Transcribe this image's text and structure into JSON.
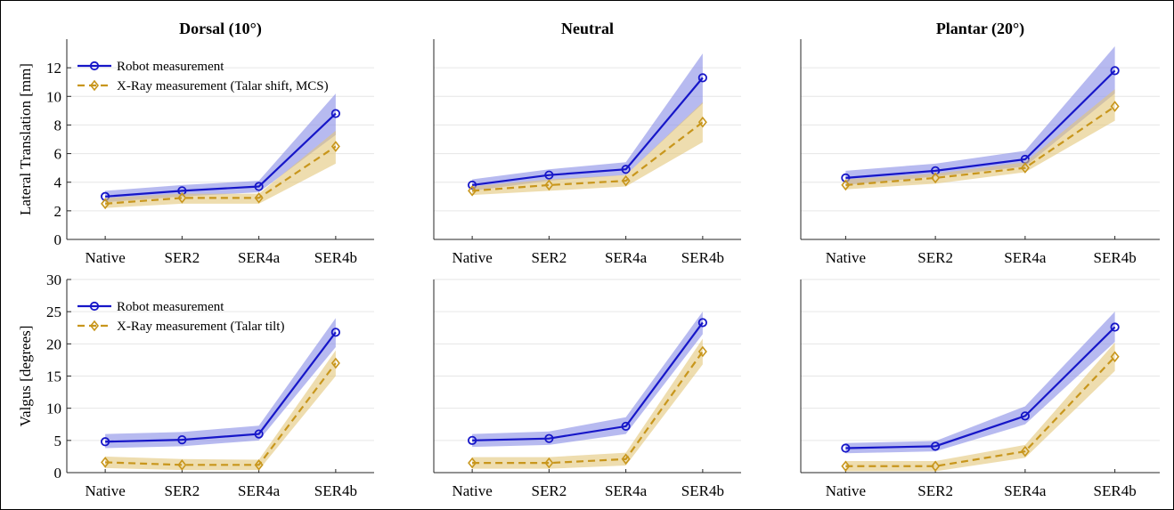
{
  "colors": {
    "robot": "#1616c8",
    "robot_band": "#8a90e6",
    "xray": "#c8961c",
    "xray_band": "#e2c77a",
    "grid": "#e6e6e6",
    "axis": "#262626"
  },
  "chart_data": [
    {
      "type": "line",
      "title": "Dorsal (10°)",
      "ylabel": "Lateral Translation [mm]",
      "categories": [
        "Native",
        "SER2",
        "SER4a",
        "SER4b"
      ],
      "ylim": [
        0,
        14
      ],
      "yticks": [
        0,
        2,
        4,
        6,
        8,
        10,
        12
      ],
      "grid": true,
      "legend": "top-left",
      "series": [
        {
          "name": "Robot measurement",
          "marker": "circle",
          "line": "solid",
          "values": [
            3.0,
            3.4,
            3.7,
            8.8
          ],
          "band_low": [
            2.6,
            3.0,
            3.3,
            7.3
          ],
          "band_high": [
            3.4,
            3.8,
            4.1,
            10.2
          ]
        },
        {
          "name": "X-Ray measurement (Talar shift, MCS)",
          "marker": "diamond",
          "line": "dashed",
          "values": [
            2.5,
            2.9,
            2.9,
            6.5
          ],
          "band_low": [
            2.2,
            2.5,
            2.5,
            5.3
          ],
          "band_high": [
            2.9,
            3.2,
            3.2,
            7.6
          ]
        }
      ]
    },
    {
      "type": "line",
      "title": "Neutral",
      "ylabel": "",
      "categories": [
        "Native",
        "SER2",
        "SER4a",
        "SER4b"
      ],
      "ylim": [
        0,
        14
      ],
      "yticks": [
        0,
        2,
        4,
        6,
        8,
        10,
        12
      ],
      "grid": true,
      "series": [
        {
          "marker": "circle",
          "line": "solid",
          "values": [
            3.8,
            4.5,
            4.9,
            11.3
          ],
          "band_low": [
            3.4,
            4.1,
            4.5,
            9.5
          ],
          "band_high": [
            4.2,
            4.9,
            5.4,
            13.0
          ]
        },
        {
          "marker": "diamond",
          "line": "dashed",
          "values": [
            3.4,
            3.8,
            4.1,
            8.2
          ],
          "band_low": [
            3.1,
            3.4,
            3.7,
            6.8
          ],
          "band_high": [
            3.7,
            4.2,
            4.5,
            9.6
          ]
        }
      ]
    },
    {
      "type": "line",
      "title": "Plantar (20°)",
      "ylabel": "",
      "categories": [
        "Native",
        "SER2",
        "SER4a",
        "SER4b"
      ],
      "ylim": [
        0,
        14
      ],
      "yticks": [
        0,
        2,
        4,
        6,
        8,
        10,
        12
      ],
      "grid": true,
      "series": [
        {
          "marker": "circle",
          "line": "solid",
          "values": [
            4.3,
            4.8,
            5.6,
            11.8
          ],
          "band_low": [
            3.8,
            4.4,
            5.1,
            10.2
          ],
          "band_high": [
            4.8,
            5.3,
            6.2,
            13.5
          ]
        },
        {
          "marker": "diamond",
          "line": "dashed",
          "values": [
            3.8,
            4.3,
            5.0,
            9.3
          ],
          "band_low": [
            3.5,
            3.9,
            4.7,
            8.3
          ],
          "band_high": [
            4.2,
            4.6,
            5.4,
            10.5
          ]
        }
      ]
    },
    {
      "type": "line",
      "title": "",
      "ylabel": "Valgus [degrees]",
      "categories": [
        "Native",
        "SER2",
        "SER4a",
        "SER4b"
      ],
      "ylim": [
        0,
        30
      ],
      "yticks": [
        0,
        5,
        10,
        15,
        20,
        25,
        30
      ],
      "grid": true,
      "legend": "top-left",
      "series": [
        {
          "name": "Robot measurement",
          "marker": "circle",
          "line": "solid",
          "values": [
            4.8,
            5.1,
            6.0,
            21.8
          ],
          "band_low": [
            3.8,
            4.1,
            5.0,
            19.5
          ],
          "band_high": [
            6.0,
            6.3,
            7.3,
            24.0
          ]
        },
        {
          "name": "X-Ray measurement (Talar tilt)",
          "marker": "diamond",
          "line": "dashed",
          "values": [
            1.6,
            1.2,
            1.2,
            17.0
          ],
          "band_low": [
            0.7,
            0.4,
            0.4,
            15.0
          ],
          "band_high": [
            2.5,
            2.1,
            2.0,
            19.0
          ]
        }
      ]
    },
    {
      "type": "line",
      "title": "",
      "ylabel": "",
      "categories": [
        "Native",
        "SER2",
        "SER4a",
        "SER4b"
      ],
      "ylim": [
        0,
        30
      ],
      "yticks": [
        0,
        5,
        10,
        15,
        20,
        25,
        30
      ],
      "grid": true,
      "series": [
        {
          "marker": "circle",
          "line": "solid",
          "values": [
            5.0,
            5.3,
            7.2,
            23.3
          ],
          "band_low": [
            4.0,
            4.3,
            6.0,
            21.5
          ],
          "band_high": [
            6.0,
            6.4,
            8.6,
            25.0
          ]
        },
        {
          "marker": "diamond",
          "line": "dashed",
          "values": [
            1.5,
            1.5,
            2.1,
            18.8
          ],
          "band_low": [
            0.6,
            0.6,
            1.1,
            16.8
          ],
          "band_high": [
            2.4,
            2.4,
            3.1,
            20.8
          ]
        }
      ]
    },
    {
      "type": "line",
      "title": "",
      "ylabel": "",
      "categories": [
        "Native",
        "SER2",
        "SER4a",
        "SER4b"
      ],
      "ylim": [
        0,
        30
      ],
      "yticks": [
        0,
        5,
        10,
        15,
        20,
        25,
        30
      ],
      "grid": true,
      "series": [
        {
          "marker": "circle",
          "line": "solid",
          "values": [
            3.8,
            4.1,
            8.8,
            22.6
          ],
          "band_low": [
            3.0,
            3.3,
            7.5,
            20.3
          ],
          "band_high": [
            4.6,
            4.9,
            10.3,
            25.0
          ]
        },
        {
          "marker": "diamond",
          "line": "dashed",
          "values": [
            1.0,
            1.0,
            3.3,
            18.0
          ],
          "band_low": [
            0.2,
            0.2,
            2.3,
            15.8
          ],
          "band_high": [
            1.8,
            1.8,
            4.3,
            20.2
          ]
        }
      ]
    }
  ]
}
